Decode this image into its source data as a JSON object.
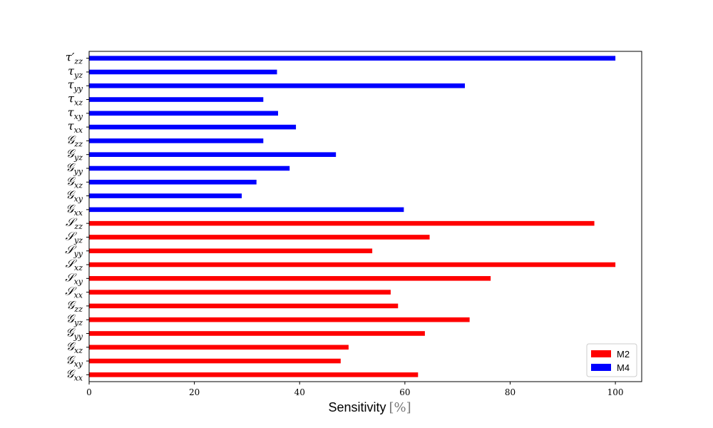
{
  "chart_data": {
    "type": "bar",
    "orientation": "horizontal",
    "title": "",
    "xlabel": "Sensitivity",
    "xlabel_unit": "[%]",
    "ylabel": "",
    "xlim": [
      0,
      105
    ],
    "xticks": [
      0,
      20,
      40,
      60,
      80,
      100
    ],
    "grid": false,
    "legend_position": "lower-right",
    "categories": [
      {
        "base": "𝒢",
        "sub": "xx"
      },
      {
        "base": "𝒢",
        "sub": "xy"
      },
      {
        "base": "𝒢",
        "sub": "xz"
      },
      {
        "base": "𝒢",
        "sub": "yy"
      },
      {
        "base": "𝒢",
        "sub": "yz"
      },
      {
        "base": "𝒢",
        "sub": "zz"
      },
      {
        "base": "𝒮",
        "sub": "xx"
      },
      {
        "base": "𝒮",
        "sub": "xy"
      },
      {
        "base": "𝒮",
        "sub": "xz"
      },
      {
        "base": "𝒮",
        "sub": "yy"
      },
      {
        "base": "𝒮",
        "sub": "yz"
      },
      {
        "base": "𝒮",
        "sub": "zz"
      },
      {
        "base": "𝒢",
        "sub": "xx"
      },
      {
        "base": "𝒢",
        "sub": "xy"
      },
      {
        "base": "𝒢",
        "sub": "xz"
      },
      {
        "base": "𝒢",
        "sub": "yy"
      },
      {
        "base": "𝒢",
        "sub": "yz"
      },
      {
        "base": "𝒢",
        "sub": "zz"
      },
      {
        "base": "τ",
        "sub": "xx"
      },
      {
        "base": "τ",
        "sub": "xy"
      },
      {
        "base": "τ",
        "sub": "xz"
      },
      {
        "base": "τ",
        "sub": "yy"
      },
      {
        "base": "τ",
        "sub": "yz"
      },
      {
        "base": "τ′",
        "sub": "zz"
      }
    ],
    "series": [
      {
        "name": "M2",
        "color": "#ff0000",
        "values": [
          62.5,
          47.8,
          49.3,
          63.8,
          72.3,
          58.7,
          57.3,
          76.3,
          100.0,
          53.8,
          64.7,
          96.0,
          null,
          null,
          null,
          null,
          null,
          null,
          null,
          null,
          null,
          null,
          null,
          null
        ]
      },
      {
        "name": "M4",
        "color": "#0000ff",
        "values": [
          null,
          null,
          null,
          null,
          null,
          null,
          null,
          null,
          null,
          null,
          null,
          null,
          59.8,
          29.0,
          31.8,
          38.1,
          46.9,
          33.1,
          39.3,
          35.9,
          33.1,
          71.4,
          35.7,
          100.0
        ]
      }
    ]
  }
}
